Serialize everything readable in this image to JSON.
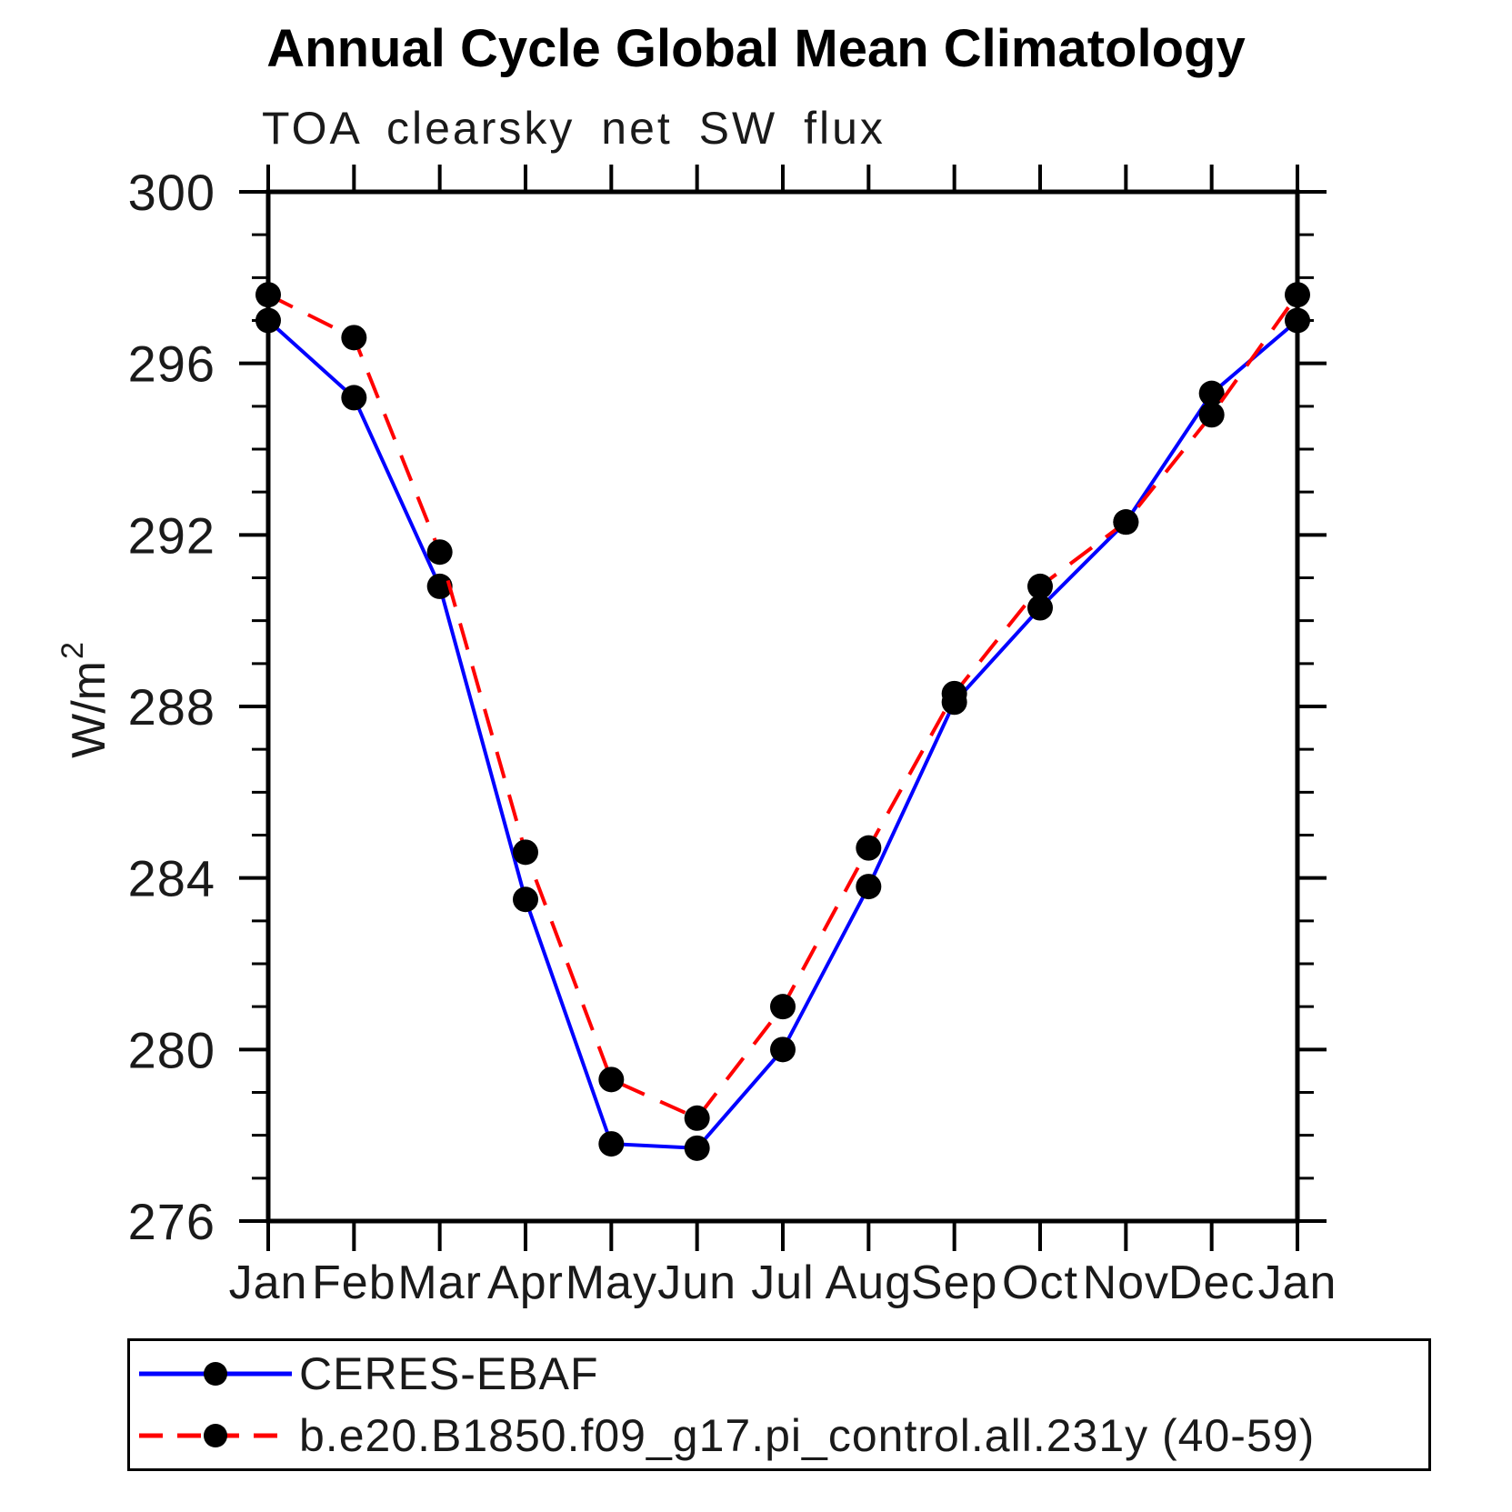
{
  "page": {
    "background": "#ffffff",
    "axis_color": "#000000"
  },
  "chart_data": {
    "type": "line",
    "title": "Annual Cycle Global Mean Climatology",
    "subtitle": "TOA clearsky net SW flux",
    "xlabel": "",
    "ylabel": "W/m²",
    "x_tick_labels": [
      "Jan",
      "Feb",
      "Mar",
      "Apr",
      "May",
      "Jun",
      "Jul",
      "Aug",
      "Sep",
      "Oct",
      "Nov",
      "Dec",
      "Jan"
    ],
    "ylim": [
      276,
      300
    ],
    "y_major_ticks": [
      276,
      280,
      284,
      288,
      292,
      296,
      300
    ],
    "y_minor_tick_interval": 1,
    "grid": false,
    "legend_position": "bottom-box",
    "series": [
      {
        "name": "CERES-EBAF",
        "color": "#0000ff",
        "line_style": "solid",
        "marker": "filled-circle",
        "marker_color": "#000000",
        "values": [
          297.0,
          295.2,
          290.8,
          283.5,
          277.8,
          277.7,
          280.0,
          283.8,
          288.1,
          290.3,
          292.3,
          295.3,
          297.0
        ]
      },
      {
        "name": "b.e20.B1850.f09_g17.pi_control.all.231y (40-59)",
        "color": "#ff0000",
        "line_style": "dashed",
        "marker": "filled-circle",
        "marker_color": "#000000",
        "values": [
          297.6,
          296.6,
          291.6,
          284.6,
          279.3,
          278.4,
          281.0,
          284.7,
          288.3,
          290.8,
          292.3,
          294.8,
          297.6
        ]
      }
    ]
  }
}
